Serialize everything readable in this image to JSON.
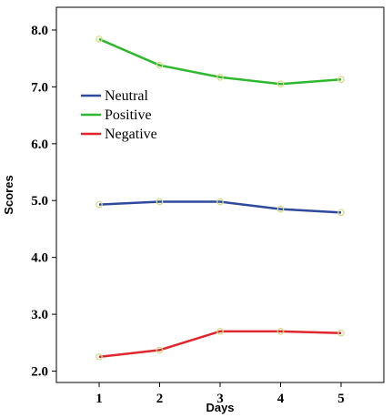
{
  "chart_data": {
    "type": "line",
    "title": "",
    "xlabel": "Days",
    "ylabel": "Scores",
    "x": [
      1,
      2,
      3,
      4,
      5
    ],
    "x_tick_labels": [
      "1",
      "2",
      "3",
      "4",
      "5"
    ],
    "y_tick_values": [
      2.0,
      3.0,
      4.0,
      5.0,
      6.0,
      7.0,
      8.0
    ],
    "y_tick_labels": [
      "2.0",
      "3.0",
      "4.0",
      "5.0",
      "6.0",
      "7.0",
      "8.0"
    ],
    "ylim": [
      1.8,
      8.4
    ],
    "grid": false,
    "legend_placement": "upper-left",
    "series": [
      {
        "name": "Neutral",
        "color": "#2e4a9e",
        "values": [
          4.93,
          4.98,
          4.98,
          4.85,
          4.79
        ]
      },
      {
        "name": "Positive",
        "color": "#2eb82e",
        "values": [
          7.84,
          7.38,
          7.17,
          7.05,
          7.13
        ]
      },
      {
        "name": "Negative",
        "color": "#e0262c",
        "values": [
          2.25,
          2.37,
          2.7,
          2.7,
          2.67
        ]
      }
    ],
    "marker_color": "#d8dc8c"
  }
}
